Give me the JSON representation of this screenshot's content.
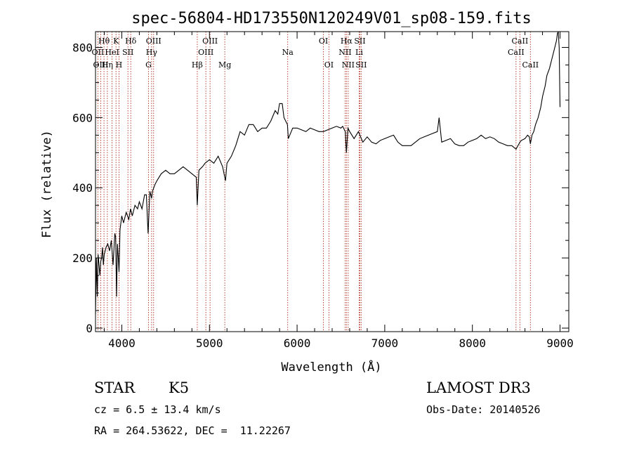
{
  "chart_data": {
    "type": "line",
    "title": "spec-56804-HD173550N120249V01_sp08-159.fits",
    "xlabel": "Wavelength (Å)",
    "ylabel": "Flux (relative)",
    "xlim": [
      3700,
      9100
    ],
    "ylim": [
      -10,
      845
    ],
    "xticks": [
      4000,
      5000,
      6000,
      7000,
      8000,
      9000
    ],
    "yticks": [
      0,
      200,
      400,
      600,
      800
    ],
    "grid": false,
    "series": [
      {
        "x": [
          3700,
          3710,
          3720,
          3730,
          3740,
          3750,
          3760,
          3770,
          3780,
          3790,
          3800,
          3820,
          3840,
          3860,
          3880,
          3900,
          3920,
          3930,
          3940,
          3950,
          3960,
          3968,
          3980,
          4000,
          4020,
          4050,
          4080,
          4100,
          4120,
          4150,
          4180,
          4200,
          4230,
          4260,
          4280,
          4300,
          4320,
          4340,
          4350,
          4380,
          4400,
          4450,
          4500,
          4550,
          4600,
          4650,
          4700,
          4750,
          4800,
          4850,
          4861,
          4880,
          4920,
          4950,
          5000,
          5050,
          5100,
          5150,
          5183,
          5200,
          5250,
          5300,
          5350,
          5400,
          5450,
          5500,
          5550,
          5600,
          5650,
          5700,
          5750,
          5780,
          5800,
          5830,
          5850,
          5890,
          5900,
          5950,
          6000,
          6050,
          6100,
          6150,
          6200,
          6250,
          6300,
          6350,
          6400,
          6450,
          6500,
          6520,
          6550,
          6563,
          6580,
          6600,
          6650,
          6700,
          6750,
          6800,
          6850,
          6900,
          6950,
          7000,
          7050,
          7100,
          7150,
          7200,
          7250,
          7300,
          7350,
          7400,
          7450,
          7500,
          7550,
          7600,
          7620,
          7650,
          7700,
          7750,
          7800,
          7850,
          7900,
          7950,
          8000,
          8050,
          8100,
          8150,
          8200,
          8250,
          8300,
          8350,
          8400,
          8450,
          8498,
          8520,
          8542,
          8560,
          8600,
          8630,
          8650,
          8662,
          8680,
          8700,
          8720,
          8750,
          8780,
          8800,
          8830,
          8850,
          8880,
          8900,
          8930,
          8950,
          8960,
          8970,
          8980,
          8990,
          9000
        ],
        "values": [
          40,
          200,
          90,
          210,
          180,
          150,
          190,
          200,
          230,
          180,
          210,
          230,
          240,
          220,
          250,
          180,
          270,
          260,
          90,
          240,
          200,
          160,
          280,
          320,
          300,
          330,
          310,
          340,
          320,
          350,
          340,
          360,
          340,
          380,
          380,
          270,
          390,
          370,
          390,
          410,
          420,
          440,
          450,
          440,
          440,
          450,
          460,
          450,
          440,
          430,
          350,
          450,
          460,
          470,
          480,
          470,
          490,
          460,
          420,
          470,
          490,
          520,
          560,
          550,
          580,
          580,
          560,
          570,
          570,
          590,
          620,
          610,
          640,
          640,
          600,
          580,
          540,
          570,
          570,
          565,
          560,
          570,
          565,
          560,
          560,
          565,
          570,
          575,
          570,
          575,
          560,
          500,
          570,
          560,
          540,
          560,
          530,
          545,
          530,
          525,
          535,
          540,
          545,
          550,
          530,
          520,
          520,
          520,
          530,
          540,
          545,
          550,
          555,
          560,
          600,
          530,
          535,
          540,
          525,
          520,
          520,
          530,
          535,
          540,
          550,
          540,
          545,
          540,
          530,
          525,
          520,
          520,
          510,
          520,
          530,
          535,
          540,
          550,
          545,
          525,
          550,
          560,
          580,
          600,
          630,
          660,
          690,
          720,
          740,
          760,
          790,
          810,
          820,
          840,
          850,
          800,
          630
        ]
      }
    ],
    "lines": [
      {
        "name": "Hθ",
        "wave": 3797,
        "row": 1
      },
      {
        "name": "OII",
        "wave": 3727,
        "row": 2
      },
      {
        "name": "OIII",
        "wave": 3760,
        "row": 3
      },
      {
        "name": "Hη",
        "wave": 3835,
        "row": 3
      },
      {
        "name": "HeI",
        "wave": 3889,
        "row": 2
      },
      {
        "name": "K",
        "wave": 3934,
        "row": 1
      },
      {
        "name": "SII",
        "wave": 4070,
        "row": 2
      },
      {
        "name": "H",
        "wave": 3968,
        "row": 3
      },
      {
        "name": "Hδ",
        "wave": 4102,
        "row": 1
      },
      {
        "name": "OIII",
        "wave": 4363,
        "row": 1
      },
      {
        "name": "Hγ",
        "wave": 4340,
        "row": 2
      },
      {
        "name": "G",
        "wave": 4305,
        "row": 3
      },
      {
        "name": "Hβ",
        "wave": 4861,
        "row": 3
      },
      {
        "name": "OIII",
        "wave": 5007,
        "row": 1
      },
      {
        "name": "OIII",
        "wave": 4959,
        "row": 2
      },
      {
        "name": "Mg",
        "wave": 5175,
        "row": 3
      },
      {
        "name": "Na",
        "wave": 5893,
        "row": 2
      },
      {
        "name": "OI",
        "wave": 6300,
        "row": 1
      },
      {
        "name": "OI",
        "wave": 6363,
        "row": 3
      },
      {
        "name": "Hα",
        "wave": 6563,
        "row": 1
      },
      {
        "name": "NII",
        "wave": 6548,
        "row": 2
      },
      {
        "name": "NII",
        "wave": 6583,
        "row": 3
      },
      {
        "name": "SII",
        "wave": 6716,
        "row": 1
      },
      {
        "name": "Li",
        "wave": 6708,
        "row": 2
      },
      {
        "name": "SII",
        "wave": 6731,
        "row": 3
      },
      {
        "name": "CaII",
        "wave": 8542,
        "row": 1
      },
      {
        "name": "CaII",
        "wave": 8498,
        "row": 2
      },
      {
        "name": "CaII",
        "wave": 8662,
        "row": 3
      }
    ]
  },
  "info": {
    "class_label": "STAR",
    "subclass": "K5",
    "survey": "LAMOST DR3",
    "cz": "cz = 6.5 ± 13.4 km/s",
    "obs_date": "Obs-Date: 20140526",
    "coords": "RA = 264.53622, DEC =  11.22267"
  }
}
